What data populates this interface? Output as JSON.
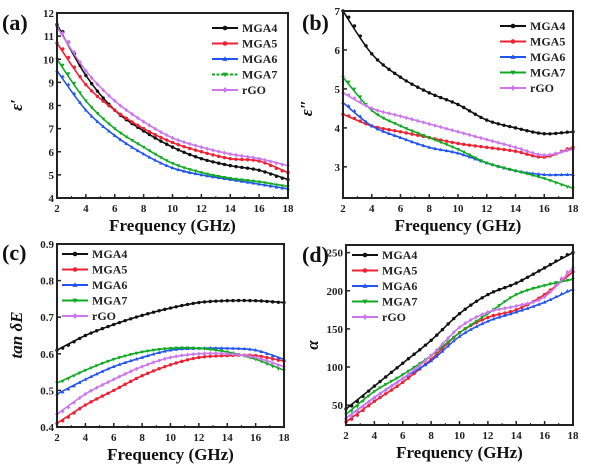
{
  "chart_data": [
    {
      "type": "line",
      "panel_label": "(a)",
      "title": "",
      "xlabel": "Frequency (GHz)",
      "ylabel": "ε′",
      "xlim": [
        2,
        18
      ],
      "ylim": [
        4,
        12
      ],
      "xticks": [
        2,
        4,
        6,
        8,
        10,
        12,
        14,
        16,
        18
      ],
      "yticks": [
        4,
        5,
        6,
        7,
        8,
        9,
        10,
        11,
        12
      ],
      "legend_position": "top-right",
      "grid": false,
      "x": [
        2,
        4,
        6,
        8,
        10,
        12,
        14,
        16,
        18
      ],
      "series": [
        {
          "name": "MGA4",
          "color": "#111111",
          "marker": "circle",
          "values": [
            11.5,
            9.3,
            7.8,
            6.9,
            6.2,
            5.7,
            5.4,
            5.2,
            4.8
          ]
        },
        {
          "name": "MGA5",
          "color": "#ee2233",
          "marker": "circle",
          "values": [
            10.7,
            8.9,
            7.8,
            7.0,
            6.4,
            6.0,
            5.7,
            5.6,
            5.1
          ]
        },
        {
          "name": "MGA6",
          "color": "#2255ee",
          "marker": "triangle-up",
          "values": [
            9.5,
            7.8,
            6.7,
            5.9,
            5.3,
            5.0,
            4.8,
            4.6,
            4.4
          ]
        },
        {
          "name": "MGA7",
          "color": "#11aa22",
          "marker": "triangle-down",
          "values": [
            10.0,
            8.2,
            7.0,
            6.2,
            5.5,
            5.1,
            4.85,
            4.7,
            4.5
          ]
        },
        {
          "name": "rGO",
          "color": "#cc77ee",
          "marker": "diamond",
          "values": [
            11.4,
            9.5,
            8.2,
            7.3,
            6.6,
            6.2,
            5.9,
            5.7,
            5.4
          ]
        }
      ]
    },
    {
      "type": "line",
      "panel_label": "(b)",
      "title": "",
      "xlabel": "Frequency (GHz)",
      "ylabel": "ε″",
      "xlim": [
        2,
        18
      ],
      "ylim": [
        2.2,
        7.0
      ],
      "xticks": [
        2,
        4,
        6,
        8,
        10,
        12,
        14,
        16,
        18
      ],
      "yticks": [
        3,
        4,
        5,
        6,
        7
      ],
      "legend_position": "top-right",
      "grid": false,
      "x": [
        2,
        4,
        6,
        8,
        10,
        12,
        14,
        16,
        18
      ],
      "series": [
        {
          "name": "MGA4",
          "color": "#111111",
          "marker": "circle",
          "values": [
            7.0,
            5.9,
            5.3,
            4.9,
            4.6,
            4.2,
            4.0,
            3.85,
            3.9
          ]
        },
        {
          "name": "MGA5",
          "color": "#ee2233",
          "marker": "circle",
          "values": [
            4.35,
            4.05,
            3.9,
            3.75,
            3.6,
            3.5,
            3.4,
            3.25,
            3.5
          ]
        },
        {
          "name": "MGA6",
          "color": "#2255ee",
          "marker": "triangle-up",
          "values": [
            4.65,
            4.05,
            3.75,
            3.5,
            3.35,
            3.1,
            2.9,
            2.8,
            2.8
          ]
        },
        {
          "name": "MGA7",
          "color": "#11aa22",
          "marker": "triangle-down",
          "values": [
            5.3,
            4.45,
            4.05,
            3.75,
            3.45,
            3.1,
            2.9,
            2.7,
            2.45
          ]
        },
        {
          "name": "rGO",
          "color": "#cc77ee",
          "marker": "diamond",
          "values": [
            4.9,
            4.5,
            4.3,
            4.1,
            3.9,
            3.7,
            3.5,
            3.3,
            3.45
          ]
        }
      ]
    },
    {
      "type": "line",
      "panel_label": "(c)",
      "title": "",
      "xlabel": "Frequency (GHz)",
      "ylabel": "tan δE",
      "xlim": [
        2,
        18
      ],
      "ylim": [
        0.4,
        0.9
      ],
      "xticks": [
        2,
        4,
        6,
        8,
        10,
        12,
        14,
        16,
        18
      ],
      "yticks": [
        0.4,
        0.5,
        0.6,
        0.7,
        0.8,
        0.9
      ],
      "legend_position": "top-left",
      "grid": false,
      "x": [
        2,
        4,
        6,
        8,
        10,
        12,
        14,
        16,
        18
      ],
      "series": [
        {
          "name": "MGA4",
          "color": "#111111",
          "marker": "circle",
          "values": [
            0.61,
            0.65,
            0.68,
            0.705,
            0.725,
            0.74,
            0.745,
            0.745,
            0.74
          ]
        },
        {
          "name": "MGA5",
          "color": "#ee2233",
          "marker": "circle",
          "values": [
            0.41,
            0.46,
            0.5,
            0.54,
            0.57,
            0.59,
            0.595,
            0.595,
            0.58
          ]
        },
        {
          "name": "MGA6",
          "color": "#2255ee",
          "marker": "triangle-up",
          "values": [
            0.49,
            0.53,
            0.565,
            0.59,
            0.61,
            0.615,
            0.615,
            0.61,
            0.585
          ]
        },
        {
          "name": "MGA7",
          "color": "#11aa22",
          "marker": "triangle-down",
          "values": [
            0.52,
            0.555,
            0.585,
            0.605,
            0.615,
            0.615,
            0.605,
            0.585,
            0.555
          ]
        },
        {
          "name": "rGO",
          "color": "#cc77ee",
          "marker": "diamond",
          "values": [
            0.435,
            0.49,
            0.53,
            0.565,
            0.59,
            0.6,
            0.6,
            0.59,
            0.565
          ]
        }
      ]
    },
    {
      "type": "line",
      "panel_label": "(d)",
      "title": "",
      "xlabel": "Frequency (GHz)",
      "ylabel": "α",
      "xlim": [
        2,
        18
      ],
      "ylim": [
        24,
        260
      ],
      "xticks": [
        2,
        4,
        6,
        8,
        10,
        12,
        14,
        16,
        18
      ],
      "yticks": [
        50,
        100,
        150,
        200,
        250
      ],
      "legend_position": "top-left",
      "grid": false,
      "x": [
        2,
        4,
        6,
        8,
        10,
        12,
        14,
        16,
        18
      ],
      "series": [
        {
          "name": "MGA4",
          "color": "#111111",
          "marker": "circle",
          "values": [
            45,
            75,
            105,
            135,
            170,
            195,
            210,
            230,
            250
          ]
        },
        {
          "name": "MGA5",
          "color": "#ee2233",
          "marker": "circle",
          "values": [
            28,
            55,
            80,
            110,
            145,
            165,
            175,
            195,
            225
          ]
        },
        {
          "name": "MGA6",
          "color": "#2255ee",
          "marker": "triangle-up",
          "values": [
            33,
            60,
            85,
            108,
            140,
            160,
            172,
            185,
            202
          ]
        },
        {
          "name": "MGA7",
          "color": "#11aa22",
          "marker": "triangle-down",
          "values": [
            38,
            68,
            90,
            115,
            145,
            170,
            195,
            207,
            215
          ]
        },
        {
          "name": "rGO",
          "color": "#cc77ee",
          "marker": "diamond",
          "values": [
            33,
            60,
            85,
            115,
            152,
            172,
            180,
            192,
            230
          ]
        }
      ]
    }
  ]
}
